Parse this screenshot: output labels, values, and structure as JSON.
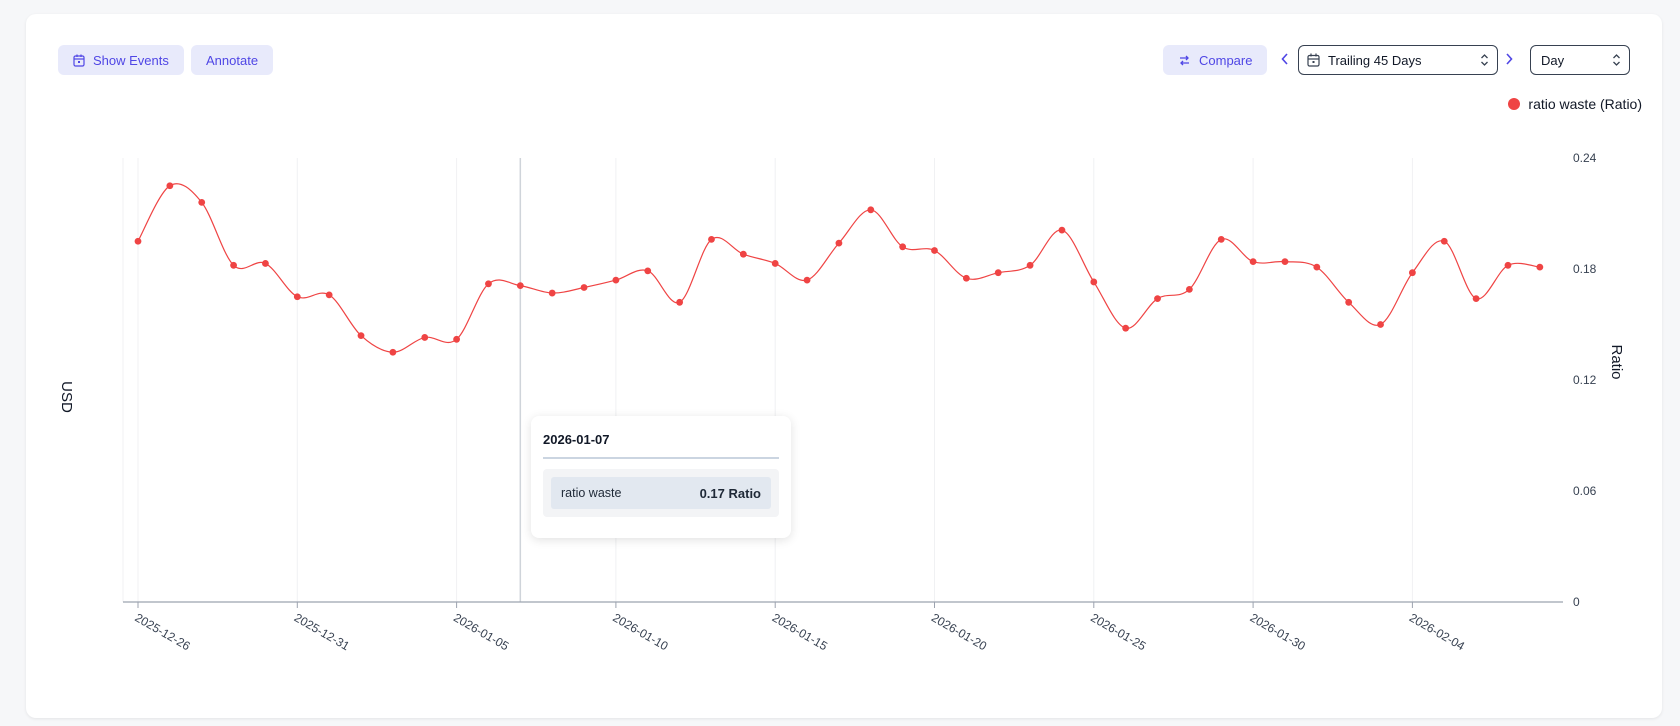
{
  "toolbar": {
    "show_events": "Show Events",
    "annotate": "Annotate",
    "compare": "Compare",
    "range": "Trailing 45 Days",
    "granularity": "Day"
  },
  "colors": {
    "accent": "#4f46e5",
    "series": "#ef4444"
  },
  "icons": {
    "show_events": "calendar-icon",
    "compare": "compare-icon",
    "range": "calendar-icon",
    "prev": "chevron-left-icon",
    "next": "chevron-right-icon"
  },
  "tooltip": {
    "date": "2026-01-07",
    "series_name": "ratio waste",
    "value_text": "0.17 Ratio"
  },
  "chart_data": {
    "type": "line",
    "title": "",
    "ylabel_left": "USD",
    "ylabel_right": "Ratio",
    "legend": [
      "ratio waste (Ratio)"
    ],
    "legend_position": "top-right",
    "ylim": [
      0,
      0.24
    ],
    "yticks": [
      "0",
      "0.06",
      "0.12",
      "0.18",
      "0.24"
    ],
    "xtick_labels": [
      "2025-12-26",
      "2025-12-31",
      "2026-01-05",
      "2026-01-10",
      "2026-01-15",
      "2026-01-20",
      "2026-01-25",
      "2026-01-30",
      "2026-02-04"
    ],
    "x": [
      "2025-12-26",
      "2025-12-27",
      "2025-12-28",
      "2025-12-29",
      "2025-12-30",
      "2025-12-31",
      "2026-01-01",
      "2026-01-02",
      "2026-01-03",
      "2026-01-04",
      "2026-01-05",
      "2026-01-06",
      "2026-01-07",
      "2026-01-08",
      "2026-01-09",
      "2026-01-10",
      "2026-01-11",
      "2026-01-12",
      "2026-01-13",
      "2026-01-14",
      "2026-01-15",
      "2026-01-16",
      "2026-01-17",
      "2026-01-18",
      "2026-01-19",
      "2026-01-20",
      "2026-01-21",
      "2026-01-22",
      "2026-01-23",
      "2026-01-24",
      "2026-01-25",
      "2026-01-26",
      "2026-01-27",
      "2026-01-28",
      "2026-01-29",
      "2026-01-30",
      "2026-01-31",
      "2026-02-01",
      "2026-02-02",
      "2026-02-03",
      "2026-02-04",
      "2026-02-05",
      "2026-02-06",
      "2026-02-07",
      "2026-02-08"
    ],
    "series": [
      {
        "name": "ratio waste",
        "values": [
          0.195,
          0.225,
          0.216,
          0.182,
          0.183,
          0.165,
          0.166,
          0.144,
          0.135,
          0.143,
          0.142,
          0.172,
          0.171,
          0.167,
          0.17,
          0.174,
          0.179,
          0.162,
          0.196,
          0.188,
          0.183,
          0.174,
          0.194,
          0.212,
          0.192,
          0.19,
          0.175,
          0.178,
          0.182,
          0.201,
          0.173,
          0.148,
          0.164,
          0.169,
          0.196,
          0.184,
          0.184,
          0.181,
          0.162,
          0.15,
          0.178,
          0.195,
          0.164,
          0.182,
          0.181
        ]
      }
    ]
  }
}
